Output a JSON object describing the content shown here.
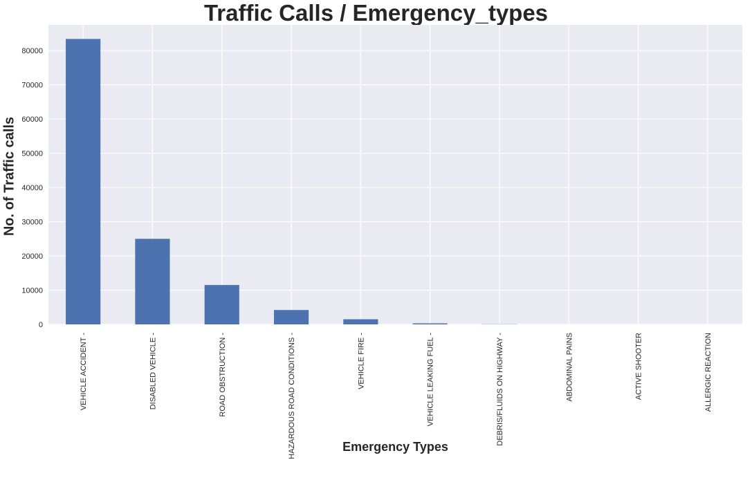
{
  "chart_data": {
    "type": "bar",
    "title": "Traffic Calls / Emergency_types",
    "xlabel": "Emergency Types",
    "ylabel": "No. of Traffic calls",
    "categories": [
      "VEHICLE ACCIDENT -",
      "DISABLED VEHICLE -",
      "ROAD OBSTRUCTION -",
      "HAZARDOUS ROAD CONDITIONS -",
      "VEHICLE FIRE -",
      "VEHICLE LEAKING FUEL -",
      "DEBRIS/FLUIDS ON HIGHWAY -",
      "ABDOMINAL PAINS",
      "ACTIVE SHOOTER",
      "ALLERGIC REACTION"
    ],
    "values": [
      83400,
      25000,
      11500,
      4200,
      1500,
      300,
      50,
      3,
      1,
      1
    ],
    "ylim": [
      0,
      87500
    ],
    "yticks": [
      0,
      10000,
      20000,
      30000,
      40000,
      50000,
      60000,
      70000,
      80000
    ],
    "ytick_labels": [
      "0",
      "10000",
      "20000",
      "30000",
      "40000",
      "50000",
      "60000",
      "70000",
      "80000"
    ],
    "grid": true,
    "legend": "none",
    "colors": {
      "bar": "#4c72b0",
      "plot_bg": "#eaeaf2",
      "grid": "#ffffff",
      "text": "#262626"
    }
  }
}
